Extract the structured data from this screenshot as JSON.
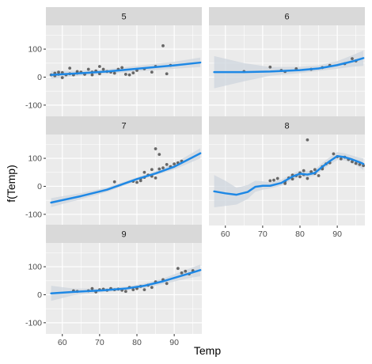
{
  "chart_data": {
    "type": "scatter",
    "layout": "faceted",
    "xlabel": "Temp",
    "ylabel": "f(Temp)",
    "xlim": [
      55.6,
      97.4
    ],
    "ylim": [
      -140,
      185
    ],
    "x_ticks": [
      60,
      70,
      80,
      90
    ],
    "y_ticks": [
      -100,
      0,
      100
    ],
    "grid": true,
    "colors": {
      "panel": "#ebebeb",
      "strip": "#d9d9d9",
      "grid": "#ffffff",
      "point": "#595959",
      "line": "#1e88e5",
      "ribbon": "#cfd6dd",
      "text": "#4d4d4d",
      "axis_title": "#000000"
    },
    "facets": [
      {
        "label": "5",
        "points": [
          [
            57,
            8
          ],
          [
            58,
            14
          ],
          [
            58,
            5
          ],
          [
            59,
            18
          ],
          [
            59,
            10
          ],
          [
            60,
            16
          ],
          [
            60,
            -2
          ],
          [
            61,
            8
          ],
          [
            62,
            12
          ],
          [
            62,
            32
          ],
          [
            63,
            8
          ],
          [
            64,
            14
          ],
          [
            64,
            20
          ],
          [
            65,
            18
          ],
          [
            66,
            10
          ],
          [
            67,
            28
          ],
          [
            68,
            18
          ],
          [
            68,
            8
          ],
          [
            69,
            22
          ],
          [
            70,
            12
          ],
          [
            70,
            38
          ],
          [
            71,
            28
          ],
          [
            72,
            20
          ],
          [
            73,
            18
          ],
          [
            74,
            14
          ],
          [
            75,
            28
          ],
          [
            76,
            34
          ],
          [
            77,
            10
          ],
          [
            78,
            8
          ],
          [
            79,
            15
          ],
          [
            80,
            24
          ],
          [
            82,
            30
          ],
          [
            84,
            18
          ],
          [
            85,
            38
          ],
          [
            87,
            112
          ],
          [
            88,
            12
          ],
          [
            89,
            42
          ]
        ],
        "line": [
          [
            57,
            8
          ],
          [
            65,
            14
          ],
          [
            72,
            20
          ],
          [
            80,
            30
          ],
          [
            90,
            42
          ],
          [
            97,
            52
          ]
        ],
        "band": [
          [
            57,
            -6,
            22
          ],
          [
            65,
            5,
            23
          ],
          [
            72,
            12,
            28
          ],
          [
            80,
            20,
            40
          ],
          [
            90,
            30,
            55
          ],
          [
            97,
            36,
            70
          ]
        ]
      },
      {
        "label": "6",
        "points": [
          [
            65,
            20
          ],
          [
            72,
            36
          ],
          [
            75,
            24
          ],
          [
            76,
            20
          ],
          [
            79,
            30
          ],
          [
            83,
            28
          ],
          [
            86,
            34
          ],
          [
            88,
            42
          ],
          [
            92,
            48
          ],
          [
            94,
            66
          ],
          [
            95,
            58
          ]
        ],
        "line": [
          [
            57,
            18
          ],
          [
            65,
            18
          ],
          [
            72,
            20
          ],
          [
            80,
            25
          ],
          [
            85,
            31
          ],
          [
            90,
            43
          ],
          [
            94,
            56
          ],
          [
            97,
            68
          ]
        ],
        "band": [
          [
            57,
            -40,
            75
          ],
          [
            65,
            -15,
            50
          ],
          [
            72,
            5,
            36
          ],
          [
            80,
            14,
            37
          ],
          [
            85,
            22,
            42
          ],
          [
            90,
            30,
            57
          ],
          [
            94,
            37,
            78
          ],
          [
            97,
            40,
            95
          ]
        ]
      },
      {
        "label": "7",
        "points": [
          [
            74,
            16
          ],
          [
            79,
            18
          ],
          [
            80,
            14
          ],
          [
            81,
            20
          ],
          [
            81,
            28
          ],
          [
            82,
            32
          ],
          [
            82,
            50
          ],
          [
            83,
            40
          ],
          [
            84,
            36
          ],
          [
            84,
            60
          ],
          [
            85,
            30
          ],
          [
            85,
            134
          ],
          [
            86,
            62
          ],
          [
            86,
            114
          ],
          [
            87,
            66
          ],
          [
            88,
            78
          ],
          [
            89,
            70
          ],
          [
            90,
            80
          ],
          [
            91,
            84
          ],
          [
            92,
            90
          ]
        ],
        "line": [
          [
            57,
            -58
          ],
          [
            65,
            -35
          ],
          [
            72,
            -12
          ],
          [
            80,
            26
          ],
          [
            85,
            46
          ],
          [
            90,
            70
          ],
          [
            97,
            118
          ]
        ],
        "band": [
          [
            57,
            -74,
            -42
          ],
          [
            65,
            -46,
            -24
          ],
          [
            72,
            -20,
            -4
          ],
          [
            80,
            20,
            32
          ],
          [
            85,
            40,
            54
          ],
          [
            90,
            60,
            82
          ],
          [
            97,
            100,
            136
          ]
        ]
      },
      {
        "label": "8",
        "points": [
          [
            72,
            20
          ],
          [
            73,
            22
          ],
          [
            74,
            28
          ],
          [
            76,
            18
          ],
          [
            76,
            10
          ],
          [
            77,
            30
          ],
          [
            78,
            40
          ],
          [
            78,
            26
          ],
          [
            79,
            38
          ],
          [
            80,
            48
          ],
          [
            80,
            34
          ],
          [
            81,
            56
          ],
          [
            81,
            42
          ],
          [
            82,
            166
          ],
          [
            82,
            28
          ],
          [
            83,
            52
          ],
          [
            84,
            60
          ],
          [
            84,
            46
          ],
          [
            85,
            38
          ],
          [
            86,
            62
          ],
          [
            86,
            70
          ],
          [
            87,
            80
          ],
          [
            88,
            84
          ],
          [
            89,
            116
          ],
          [
            90,
            106
          ],
          [
            91,
            98
          ],
          [
            92,
            104
          ],
          [
            93,
            96
          ],
          [
            94,
            88
          ],
          [
            95,
            82
          ],
          [
            96,
            78
          ],
          [
            97,
            74
          ]
        ],
        "line": [
          [
            57,
            -18
          ],
          [
            60,
            -25
          ],
          [
            63,
            -30
          ],
          [
            66,
            -20
          ],
          [
            68,
            -2
          ],
          [
            70,
            2
          ],
          [
            72,
            2
          ],
          [
            75,
            12
          ],
          [
            78,
            35
          ],
          [
            80,
            45
          ],
          [
            82,
            42
          ],
          [
            84,
            48
          ],
          [
            86,
            70
          ],
          [
            88,
            90
          ],
          [
            90,
            108
          ],
          [
            92,
            104
          ],
          [
            94,
            96
          ],
          [
            96,
            86
          ],
          [
            97,
            80
          ]
        ],
        "band": [
          [
            57,
            -75,
            40
          ],
          [
            60,
            -70,
            20
          ],
          [
            63,
            -65,
            -5
          ],
          [
            66,
            -45,
            5
          ],
          [
            68,
            -20,
            20
          ],
          [
            70,
            -12,
            18
          ],
          [
            72,
            -8,
            14
          ],
          [
            75,
            2,
            24
          ],
          [
            78,
            24,
            46
          ],
          [
            80,
            34,
            56
          ],
          [
            82,
            32,
            54
          ],
          [
            84,
            38,
            60
          ],
          [
            86,
            58,
            84
          ],
          [
            88,
            78,
            104
          ],
          [
            90,
            94,
            122
          ],
          [
            92,
            92,
            118
          ],
          [
            94,
            82,
            110
          ],
          [
            96,
            68,
            102
          ],
          [
            97,
            58,
            100
          ]
        ]
      },
      {
        "label": "9",
        "points": [
          [
            63,
            14
          ],
          [
            64,
            12
          ],
          [
            67,
            14
          ],
          [
            68,
            22
          ],
          [
            69,
            10
          ],
          [
            70,
            18
          ],
          [
            71,
            20
          ],
          [
            72,
            16
          ],
          [
            73,
            22
          ],
          [
            74,
            18
          ],
          [
            75,
            20
          ],
          [
            76,
            16
          ],
          [
            77,
            12
          ],
          [
            78,
            26
          ],
          [
            79,
            18
          ],
          [
            80,
            22
          ],
          [
            81,
            30
          ],
          [
            82,
            18
          ],
          [
            83,
            34
          ],
          [
            84,
            26
          ],
          [
            85,
            46
          ],
          [
            87,
            54
          ],
          [
            88,
            40
          ],
          [
            91,
            94
          ],
          [
            92,
            78
          ],
          [
            93,
            84
          ],
          [
            94,
            74
          ],
          [
            95,
            86
          ]
        ],
        "line": [
          [
            57,
            5
          ],
          [
            63,
            10
          ],
          [
            70,
            15
          ],
          [
            77,
            22
          ],
          [
            82,
            32
          ],
          [
            87,
            48
          ],
          [
            91,
            64
          ],
          [
            95,
            80
          ],
          [
            97,
            88
          ]
        ],
        "band": [
          [
            57,
            -22,
            32
          ],
          [
            63,
            -2,
            22
          ],
          [
            70,
            8,
            22
          ],
          [
            77,
            15,
            29
          ],
          [
            82,
            24,
            40
          ],
          [
            87,
            38,
            58
          ],
          [
            91,
            50,
            78
          ],
          [
            95,
            62,
            98
          ],
          [
            97,
            66,
            108
          ]
        ]
      }
    ]
  }
}
